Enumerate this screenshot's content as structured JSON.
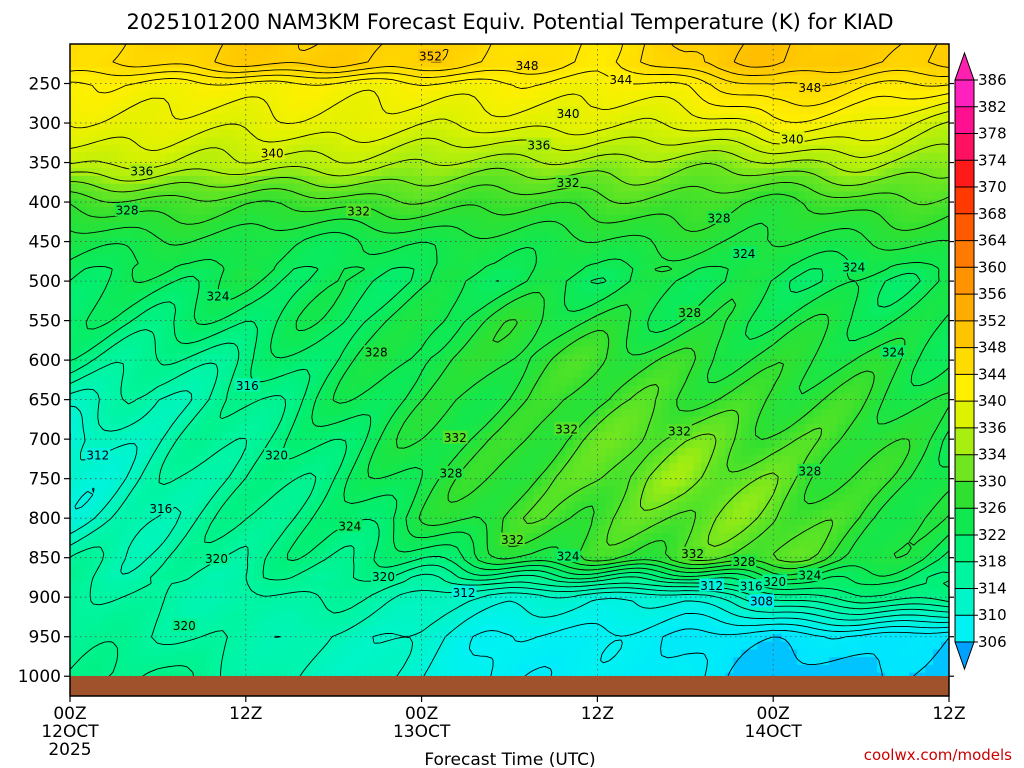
{
  "chart_data": {
    "type": "heatmap",
    "title": "2025101200 NAM3KM Forecast Equiv. Potential Temperature (K) for KIAD",
    "xlabel": "Forecast Time (UTC)",
    "ylabel": "",
    "credit": "coolwx.com/models",
    "x_ticks": [
      {
        "hour": 0,
        "label": "00Z",
        "sub": "12OCT",
        "sub2": "2025"
      },
      {
        "hour": 12,
        "label": "12Z",
        "sub": "",
        "sub2": ""
      },
      {
        "hour": 24,
        "label": "00Z",
        "sub": "13OCT",
        "sub2": ""
      },
      {
        "hour": 36,
        "label": "12Z",
        "sub": "",
        "sub2": ""
      },
      {
        "hour": 48,
        "label": "00Z",
        "sub": "14OCT",
        "sub2": ""
      },
      {
        "hour": 60,
        "label": "12Z",
        "sub": "",
        "sub2": ""
      }
    ],
    "xlim": [
      0,
      60
    ],
    "y_ticks": [
      250,
      300,
      350,
      400,
      450,
      500,
      550,
      600,
      650,
      700,
      750,
      800,
      850,
      900,
      950,
      1000
    ],
    "ylim": [
      200,
      1025
    ],
    "colorbar": {
      "levels": [
        306,
        310,
        314,
        318,
        322,
        326,
        330,
        334,
        336,
        340,
        344,
        348,
        352,
        356,
        360,
        364,
        368,
        370,
        374,
        378,
        382,
        386
      ],
      "colors": [
        "#00e5ff",
        "#00f2f2",
        "#00f5c8",
        "#00f5a0",
        "#00f078",
        "#10e850",
        "#30e030",
        "#70e620",
        "#a8ee10",
        "#dcf200",
        "#fff000",
        "#ffdc00",
        "#ffc400",
        "#ffac00",
        "#ff9400",
        "#ff7a00",
        "#ff5a00",
        "#ff3a00",
        "#ff1a1a",
        "#ff1060",
        "#ff1090",
        "#ff20c0"
      ],
      "low_color": "#00a0ff",
      "high_color": "#ff20b0"
    },
    "theta_e_field": {
      "description": "approximate equivalent potential temperature (K) by pressure level (hPa) and forecast hour",
      "pressure_levels": [
        225,
        250,
        300,
        350,
        400,
        450,
        500,
        550,
        600,
        650,
        700,
        750,
        800,
        850,
        900,
        950,
        1000
      ],
      "hours": [
        0,
        6,
        12,
        18,
        24,
        30,
        36,
        42,
        48,
        54,
        60
      ],
      "values": [
        [
          348,
          349,
          350,
          351,
          350,
          347,
          346,
          350,
          352,
          351,
          350
        ],
        [
          344,
          344,
          343,
          343,
          344,
          343,
          343,
          345,
          348,
          347,
          346
        ],
        [
          341,
          342,
          341,
          341,
          341,
          341,
          340,
          341,
          343,
          342,
          339
        ],
        [
          338,
          338,
          338,
          337,
          336,
          336,
          335,
          335,
          336,
          336,
          335
        ],
        [
          331,
          331,
          331,
          331,
          331,
          331,
          331,
          331,
          330,
          331,
          331
        ],
        [
          327,
          327,
          327,
          326,
          326,
          327,
          328,
          328,
          328,
          328,
          328
        ],
        [
          325,
          325,
          325,
          325,
          325,
          325,
          326,
          326,
          325,
          325,
          325
        ],
        [
          323,
          323,
          323,
          325,
          327,
          328,
          328,
          327,
          326,
          327,
          326
        ],
        [
          320,
          319,
          321,
          324,
          328,
          329,
          330,
          330,
          328,
          328,
          327
        ],
        [
          316,
          316,
          320,
          324,
          327,
          329,
          330,
          331,
          330,
          329,
          327
        ],
        [
          312,
          316,
          320,
          323,
          327,
          330,
          332,
          333,
          332,
          330,
          326
        ],
        [
          313,
          316,
          319,
          323,
          327,
          330,
          333,
          334,
          333,
          330,
          327
        ],
        [
          314,
          317,
          319,
          322,
          327,
          330,
          332,
          333,
          333,
          330,
          326
        ],
        [
          317,
          318,
          319,
          321,
          323,
          327,
          330,
          332,
          332,
          329,
          325
        ],
        [
          318,
          318,
          317,
          318,
          316,
          313,
          312,
          313,
          318,
          321,
          322
        ],
        [
          319,
          318,
          318,
          315,
          313,
          310,
          309,
          308,
          307,
          307,
          306
        ],
        [
          320,
          320,
          318,
          315,
          312,
          309,
          309,
          308,
          305,
          305,
          305
        ]
      ]
    },
    "contour_labels": [
      {
        "value": "352",
        "hour": 24.6,
        "p": 215
      },
      {
        "value": "348",
        "hour": 31.2,
        "p": 227
      },
      {
        "value": "344",
        "hour": 37.6,
        "p": 245
      },
      {
        "value": "348",
        "hour": 50.5,
        "p": 255
      },
      {
        "value": "340",
        "hour": 34.0,
        "p": 288
      },
      {
        "value": "340",
        "hour": 49.3,
        "p": 320
      },
      {
        "value": "336",
        "hour": 32.0,
        "p": 328
      },
      {
        "value": "340",
        "hour": 13.8,
        "p": 338
      },
      {
        "value": "336",
        "hour": 4.9,
        "p": 361
      },
      {
        "value": "332",
        "hour": 34.0,
        "p": 375
      },
      {
        "value": "332",
        "hour": 19.7,
        "p": 411
      },
      {
        "value": "328",
        "hour": 3.9,
        "p": 410
      },
      {
        "value": "328",
        "hour": 44.3,
        "p": 420
      },
      {
        "value": "324",
        "hour": 46.0,
        "p": 465
      },
      {
        "value": "324",
        "hour": 53.5,
        "p": 482
      },
      {
        "value": "324",
        "hour": 10.1,
        "p": 519
      },
      {
        "value": "328",
        "hour": 42.3,
        "p": 540
      },
      {
        "value": "328",
        "hour": 20.9,
        "p": 590
      },
      {
        "value": "324",
        "hour": 56.2,
        "p": 590
      },
      {
        "value": "316",
        "hour": 12.1,
        "p": 632
      },
      {
        "value": "332",
        "hour": 33.9,
        "p": 687
      },
      {
        "value": "332",
        "hour": 41.6,
        "p": 690
      },
      {
        "value": "332",
        "hour": 26.3,
        "p": 698
      },
      {
        "value": "320",
        "hour": 14.1,
        "p": 720
      },
      {
        "value": "312",
        "hour": 1.9,
        "p": 720
      },
      {
        "value": "328",
        "hour": 26.0,
        "p": 743
      },
      {
        "value": "328",
        "hour": 50.5,
        "p": 740
      },
      {
        "value": "316",
        "hour": 6.2,
        "p": 788
      },
      {
        "value": "324",
        "hour": 19.1,
        "p": 810
      },
      {
        "value": "332",
        "hour": 30.2,
        "p": 827
      },
      {
        "value": "324",
        "hour": 34.0,
        "p": 848
      },
      {
        "value": "332",
        "hour": 42.5,
        "p": 845
      },
      {
        "value": "328",
        "hour": 46.0,
        "p": 855
      },
      {
        "value": "320",
        "hour": 10.0,
        "p": 851
      },
      {
        "value": "320",
        "hour": 21.4,
        "p": 874
      },
      {
        "value": "312",
        "hour": 26.9,
        "p": 894
      },
      {
        "value": "312",
        "hour": 43.8,
        "p": 885
      },
      {
        "value": "316",
        "hour": 46.5,
        "p": 886
      },
      {
        "value": "320",
        "hour": 48.1,
        "p": 880
      },
      {
        "value": "324",
        "hour": 50.5,
        "p": 872
      },
      {
        "value": "308",
        "hour": 47.2,
        "p": 905
      },
      {
        "value": "320",
        "hour": 7.8,
        "p": 936
      }
    ]
  }
}
